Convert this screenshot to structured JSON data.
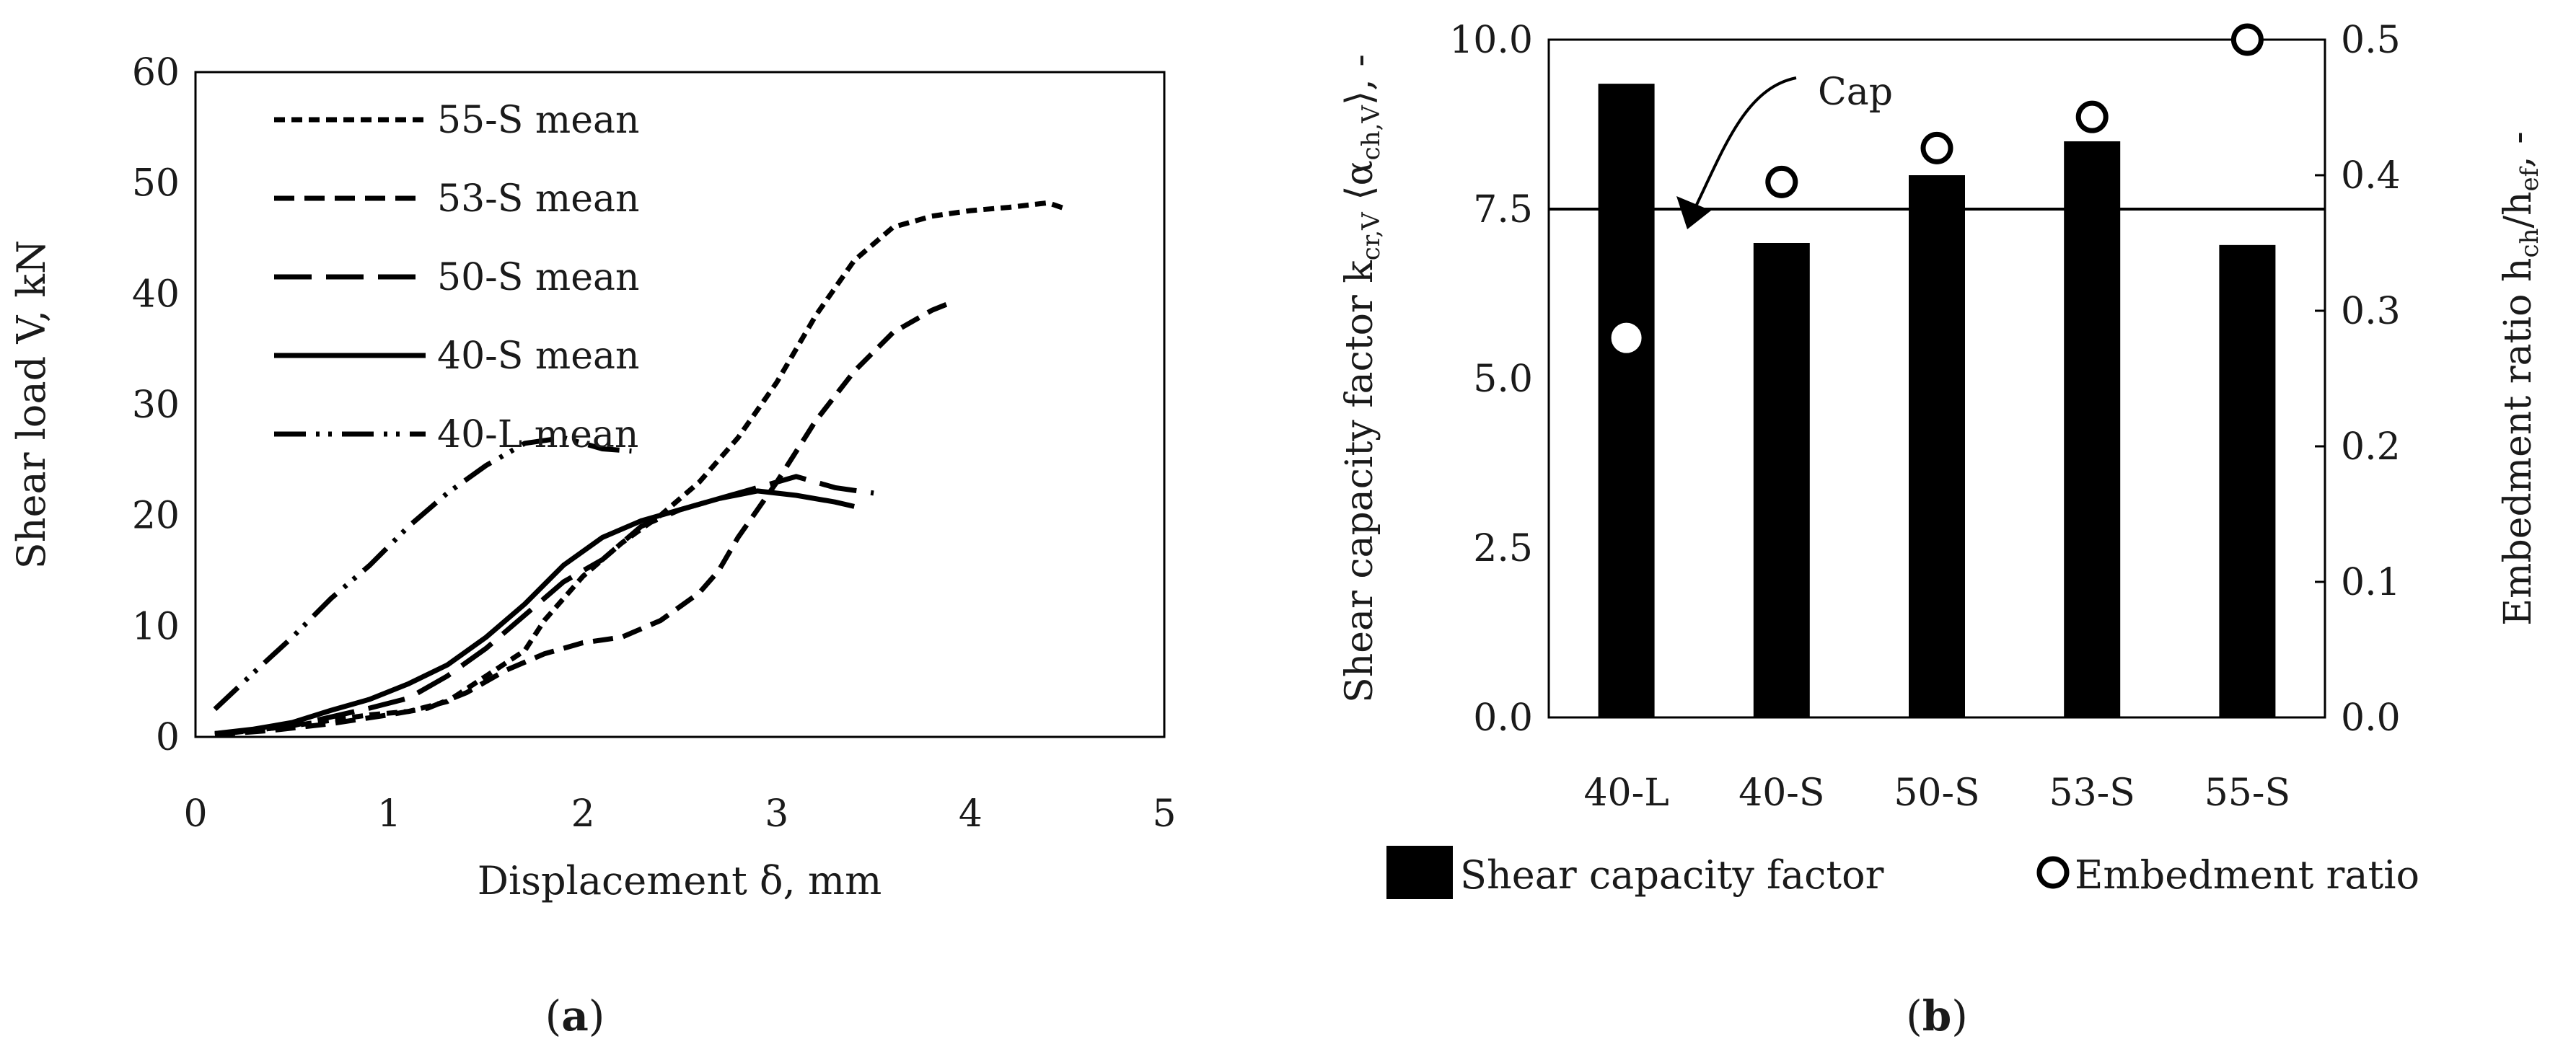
{
  "chart_data": [
    {
      "type": "line",
      "panel_label": "(a)",
      "panel_letter": "a",
      "xlabel": "Displacement δ, mm",
      "ylabel": "Shear load V, kN",
      "xlim": [
        0,
        5
      ],
      "ylim": [
        0,
        60
      ],
      "xticks": [
        0,
        1,
        2,
        3,
        4,
        5
      ],
      "yticks": [
        0,
        10,
        20,
        30,
        40,
        50,
        60
      ],
      "legend_position": "top-left",
      "series": [
        {
          "name": "55-S mean",
          "style": "short-dash",
          "points": [
            [
              0.1,
              0.2
            ],
            [
              0.3,
              0.6
            ],
            [
              0.5,
              1.0
            ],
            [
              0.7,
              1.5
            ],
            [
              0.9,
              2.0
            ],
            [
              1.1,
              2.3
            ],
            [
              1.3,
              3.2
            ],
            [
              1.5,
              5.5
            ],
            [
              1.7,
              7.8
            ],
            [
              1.8,
              10.5
            ],
            [
              2.0,
              14.5
            ],
            [
              2.2,
              17.5
            ],
            [
              2.4,
              20.0
            ],
            [
              2.6,
              23.0
            ],
            [
              2.8,
              27.0
            ],
            [
              3.0,
              32.0
            ],
            [
              3.2,
              38.0
            ],
            [
              3.4,
              43.0
            ],
            [
              3.6,
              46.0
            ],
            [
              3.8,
              47.0
            ],
            [
              4.0,
              47.5
            ],
            [
              4.2,
              47.8
            ],
            [
              4.4,
              48.2
            ],
            [
              4.5,
              47.6
            ]
          ]
        },
        {
          "name": "53-S mean",
          "style": "medium-dash",
          "points": [
            [
              0.1,
              0.2
            ],
            [
              0.4,
              0.6
            ],
            [
              0.7,
              1.2
            ],
            [
              1.0,
              2.0
            ],
            [
              1.2,
              2.6
            ],
            [
              1.4,
              4.0
            ],
            [
              1.6,
              6.0
            ],
            [
              1.8,
              7.5
            ],
            [
              2.0,
              8.5
            ],
            [
              2.2,
              9.0
            ],
            [
              2.4,
              10.5
            ],
            [
              2.6,
              13.0
            ],
            [
              2.7,
              15.0
            ],
            [
              2.8,
              18.0
            ],
            [
              3.0,
              23.0
            ],
            [
              3.2,
              28.5
            ],
            [
              3.4,
              33.0
            ],
            [
              3.6,
              36.5
            ],
            [
              3.8,
              38.5
            ],
            [
              3.9,
              39.2
            ]
          ]
        },
        {
          "name": "50-S mean",
          "style": "long-dash",
          "points": [
            [
              0.1,
              0.3
            ],
            [
              0.3,
              0.6
            ],
            [
              0.5,
              1.0
            ],
            [
              0.7,
              1.8
            ],
            [
              0.9,
              2.6
            ],
            [
              1.1,
              3.5
            ],
            [
              1.3,
              5.5
            ],
            [
              1.5,
              8.0
            ],
            [
              1.7,
              11.0
            ],
            [
              1.9,
              14.0
            ],
            [
              2.1,
              16.0
            ],
            [
              2.3,
              19.0
            ],
            [
              2.5,
              20.5
            ],
            [
              2.7,
              21.5
            ],
            [
              2.9,
              22.5
            ],
            [
              3.1,
              23.5
            ],
            [
              3.3,
              22.5
            ],
            [
              3.5,
              22.0
            ]
          ]
        },
        {
          "name": "40-S mean",
          "style": "solid",
          "points": [
            [
              0.1,
              0.3
            ],
            [
              0.3,
              0.7
            ],
            [
              0.5,
              1.3
            ],
            [
              0.7,
              2.4
            ],
            [
              0.9,
              3.4
            ],
            [
              1.1,
              4.8
            ],
            [
              1.3,
              6.5
            ],
            [
              1.5,
              9.0
            ],
            [
              1.7,
              12.0
            ],
            [
              1.9,
              15.5
            ],
            [
              2.1,
              18.0
            ],
            [
              2.3,
              19.5
            ],
            [
              2.5,
              20.5
            ],
            [
              2.7,
              21.5
            ],
            [
              2.9,
              22.2
            ],
            [
              3.1,
              21.8
            ],
            [
              3.3,
              21.2
            ],
            [
              3.4,
              20.8
            ]
          ]
        },
        {
          "name": "40-L mean",
          "style": "dash-dot-dot",
          "points": [
            [
              0.1,
              2.5
            ],
            [
              0.3,
              5.8
            ],
            [
              0.5,
              9.0
            ],
            [
              0.7,
              12.5
            ],
            [
              0.9,
              15.5
            ],
            [
              1.1,
              19.0
            ],
            [
              1.3,
              22.0
            ],
            [
              1.5,
              24.5
            ],
            [
              1.7,
              26.5
            ],
            [
              1.9,
              27.0
            ],
            [
              2.1,
              26.0
            ],
            [
              2.25,
              25.8
            ]
          ]
        }
      ]
    },
    {
      "type": "bar",
      "panel_label": "(b)",
      "panel_letter": "b",
      "categories": [
        "40-L",
        "40-S",
        "50-S",
        "53-S",
        "55-S"
      ],
      "ylabel_left": "Shear capacity factor k_cr,V ⟨α_ch,V⟩, -",
      "ylabel_left_parts": {
        "a": "Shear capacity factor k",
        "b": "cr,V",
        "c": " ⟨α",
        "d": "ch,V",
        "e": "⟩, -"
      },
      "ylabel_right": "Embedment ratio h_ch/h_ef, -",
      "ylabel_right_parts": {
        "a": "Embedment ratio h",
        "b": "ch",
        "c": "/h",
        "d": "ef",
        "e": ", -"
      },
      "ylim_left": [
        0,
        10
      ],
      "ylim_right": [
        0,
        0.5
      ],
      "yticks_left": [
        "0.0",
        "2.5",
        "5.0",
        "7.5",
        "10.0"
      ],
      "yticks_right": [
        "0.0",
        "0.1",
        "0.2",
        "0.3",
        "0.4",
        "0.5"
      ],
      "series": [
        {
          "name": "Shear capacity factor",
          "axis": "left",
          "kind": "bar",
          "color": "#000000",
          "values": [
            9.35,
            7.0,
            8.0,
            8.5,
            6.97
          ]
        },
        {
          "name": "Embedment ratio",
          "axis": "right",
          "kind": "circle-marker",
          "values": [
            0.28,
            0.395,
            0.42,
            0.443,
            0.5
          ]
        }
      ],
      "cap_line": {
        "label": "Cap",
        "value": 7.5,
        "axis": "left"
      },
      "legend_position": "bottom"
    }
  ]
}
